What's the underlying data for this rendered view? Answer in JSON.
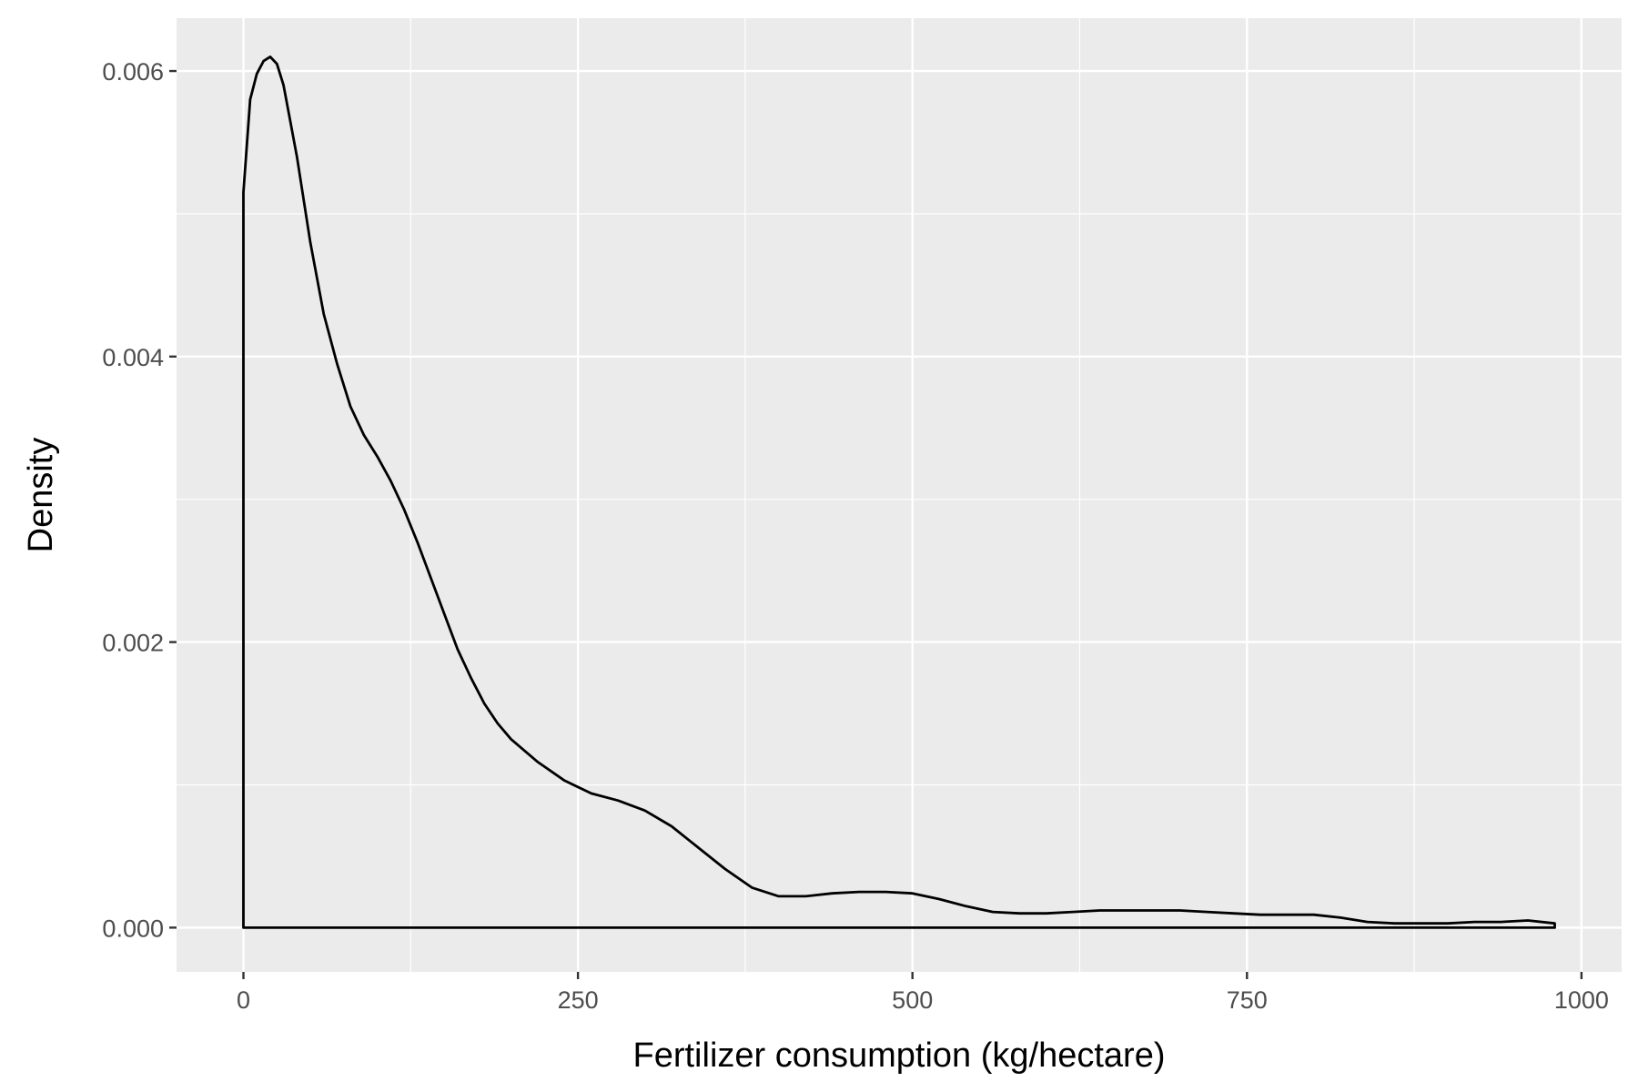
{
  "chart_data": {
    "type": "area",
    "title": "",
    "xlabel": "Fertilizer consumption (kg/hectare)",
    "ylabel": "Density",
    "xlim": [
      -50,
      1030
    ],
    "ylim": [
      -0.00031,
      0.00637
    ],
    "x_ticks": [
      0,
      250,
      500,
      750,
      1000
    ],
    "x_tick_labels": [
      "0",
      "250",
      "500",
      "750",
      "1000"
    ],
    "y_ticks": [
      0,
      0.002,
      0.004,
      0.006
    ],
    "y_tick_labels": [
      "0.000",
      "0.002",
      "0.004",
      "0.006"
    ],
    "grid": true,
    "background": "#ebebeb",
    "grid_color": "#ffffff",
    "line_color": "#000000",
    "fill": "none",
    "series": [
      {
        "x": [
          0,
          0,
          5,
          10,
          15,
          20,
          25,
          30,
          40,
          50,
          60,
          70,
          80,
          90,
          100,
          110,
          120,
          130,
          140,
          150,
          160,
          170,
          180,
          190,
          200,
          220,
          240,
          260,
          280,
          300,
          320,
          340,
          360,
          380,
          400,
          420,
          440,
          460,
          480,
          500,
          520,
          540,
          560,
          580,
          600,
          620,
          640,
          660,
          680,
          700,
          720,
          740,
          760,
          780,
          800,
          820,
          840,
          860,
          880,
          900,
          920,
          940,
          960,
          980,
          980
        ],
        "y": [
          0,
          0.00515,
          0.0058,
          0.00598,
          0.00607,
          0.0061,
          0.00605,
          0.0059,
          0.0054,
          0.0048,
          0.0043,
          0.00395,
          0.00365,
          0.00345,
          0.0033,
          0.00313,
          0.00293,
          0.0027,
          0.00245,
          0.0022,
          0.00195,
          0.00175,
          0.00157,
          0.00143,
          0.00132,
          0.00116,
          0.00103,
          0.00094,
          0.00089,
          0.00082,
          0.00071,
          0.00056,
          0.00041,
          0.00028,
          0.00022,
          0.00022,
          0.00024,
          0.00025,
          0.00025,
          0.00024,
          0.0002,
          0.00015,
          0.00011,
          0.0001,
          0.0001,
          0.00011,
          0.00012,
          0.00012,
          0.00012,
          0.00012,
          0.00011,
          0.0001,
          9e-05,
          9e-05,
          9e-05,
          7e-05,
          4e-05,
          3e-05,
          3e-05,
          3e-05,
          4e-05,
          4e-05,
          5e-05,
          3e-05,
          0
        ]
      }
    ]
  }
}
